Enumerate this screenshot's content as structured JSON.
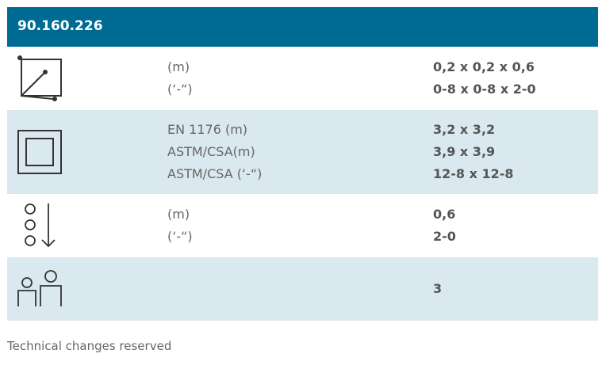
{
  "header": {
    "title": "90.160.226"
  },
  "rows": [
    {
      "labels": [
        "(m)",
        "(‘-“)"
      ],
      "values": [
        "0,2 x 0,2 x 0,6",
        "0-8 x 0-8 x 2-0"
      ]
    },
    {
      "labels": [
        "EN 1176 (m)",
        "ASTM/CSA(m)",
        "ASTM/CSA (‘-“)"
      ],
      "values": [
        "3,2 x 3,2",
        "3,9 x 3,9",
        "12-8 x 12-8"
      ]
    },
    {
      "labels": [
        "(m)",
        "(‘-“)"
      ],
      "values": [
        "0,6",
        "2-0"
      ]
    },
    {
      "labels": [],
      "values": [
        "3"
      ]
    }
  ],
  "footer": "Technical changes reserved"
}
